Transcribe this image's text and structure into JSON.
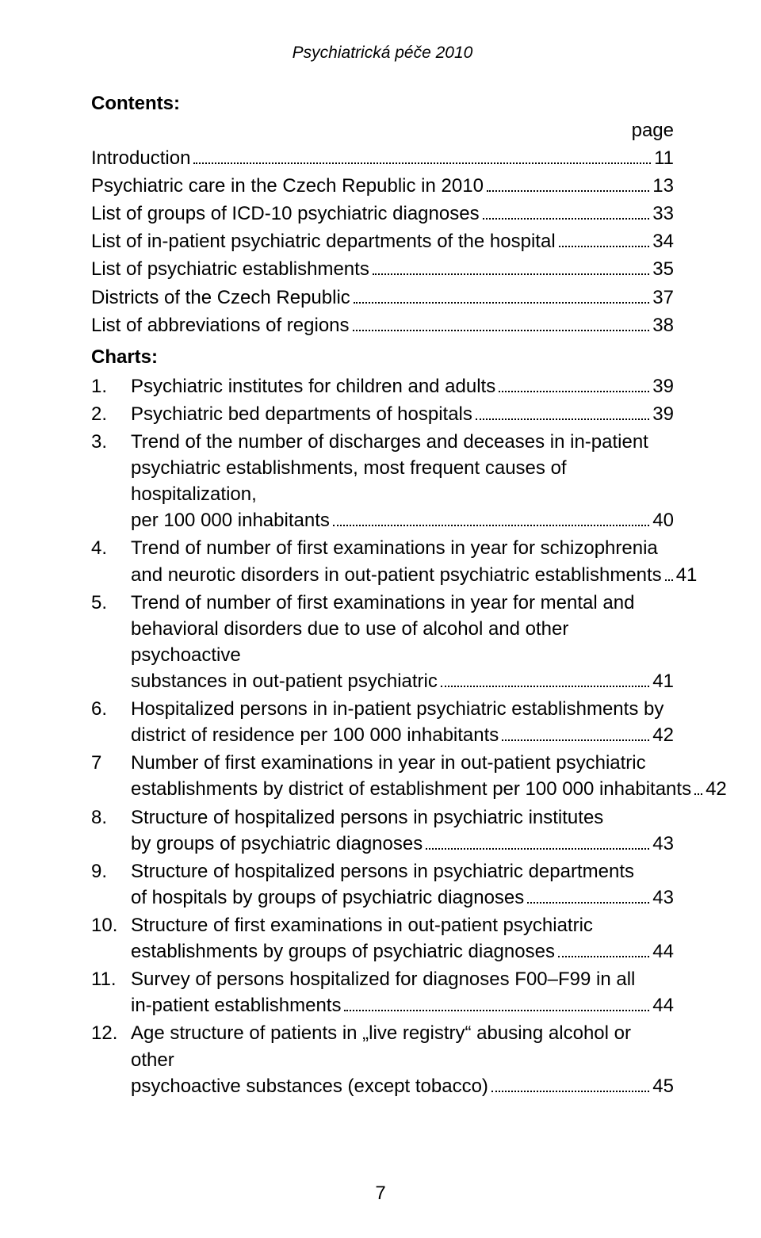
{
  "header": {
    "title": "Psychiatrická péče 2010"
  },
  "contents": {
    "heading": "Contents:",
    "page_label": "page",
    "items": [
      {
        "text": "Introduction",
        "page": "11"
      },
      {
        "text": "Psychiatric care in the Czech Republic in 2010",
        "page": "13"
      },
      {
        "text": "List of groups of ICD-10 psychiatric diagnoses",
        "page": "33"
      },
      {
        "text": "List of in-patient psychiatric departments of the hospital",
        "page": "34"
      },
      {
        "text": "List of psychiatric establishments",
        "page": "35"
      },
      {
        "text": "Districts of the Czech Republic",
        "page": "37"
      },
      {
        "text": "List of abbreviations of regions",
        "page": "38"
      }
    ]
  },
  "charts": {
    "heading": "Charts:",
    "items": [
      {
        "num": "1.",
        "lines": [
          "Psychiatric institutes for children and adults"
        ],
        "page": "39"
      },
      {
        "num": "2.",
        "lines": [
          "Psychiatric bed departments of hospitals"
        ],
        "page": "39"
      },
      {
        "num": "3.",
        "lines": [
          "Trend of the number of discharges and deceases in in-patient",
          "psychiatric establishments, most frequent causes of hospitalization,",
          "per 100 000 inhabitants"
        ],
        "page": "40"
      },
      {
        "num": "4.",
        "lines": [
          "Trend of number of first examinations in year for schizophrenia",
          "and neurotic disorders in out-patient psychiatric establishments"
        ],
        "page": "41"
      },
      {
        "num": "5.",
        "lines": [
          "Trend of number of first examinations in year for mental and",
          "behavioral disorders due to use of alcohol and other psychoactive",
          "substances in out-patient psychiatric"
        ],
        "page": "41"
      },
      {
        "num": "6.",
        "lines": [
          "Hospitalized persons in in-patient psychiatric establishments by",
          "district of residence per 100 000 inhabitants"
        ],
        "page": "42"
      },
      {
        "num": "7",
        "lines": [
          "Number of first examinations in year in out-patient psychiatric",
          "establishments by district of establishment per 100 000 inhabitants"
        ],
        "page": "42"
      },
      {
        "num": "8.",
        "lines": [
          "Structure of hospitalized persons in psychiatric institutes",
          "by groups of psychiatric diagnoses"
        ],
        "page": "43"
      },
      {
        "num": "9.",
        "lines": [
          "Structure of hospitalized persons in psychiatric departments",
          "of hospitals by groups of psychiatric diagnoses"
        ],
        "page": "43"
      },
      {
        "num": "10.",
        "lines": [
          "Structure of first examinations in out-patient psychiatric",
          "establishments by groups of psychiatric diagnoses"
        ],
        "page": "44"
      },
      {
        "num": "11.",
        "lines": [
          "Survey of persons hospitalized for diagnoses F00–F99 in all",
          "in-patient establishments"
        ],
        "page": "44"
      },
      {
        "num": "12.",
        "lines": [
          "Age structure of patients in „live registry“ abusing alcohol or other",
          "psychoactive substances (except tobacco)"
        ],
        "page": "45"
      }
    ]
  },
  "footer": {
    "page_number": "7"
  }
}
